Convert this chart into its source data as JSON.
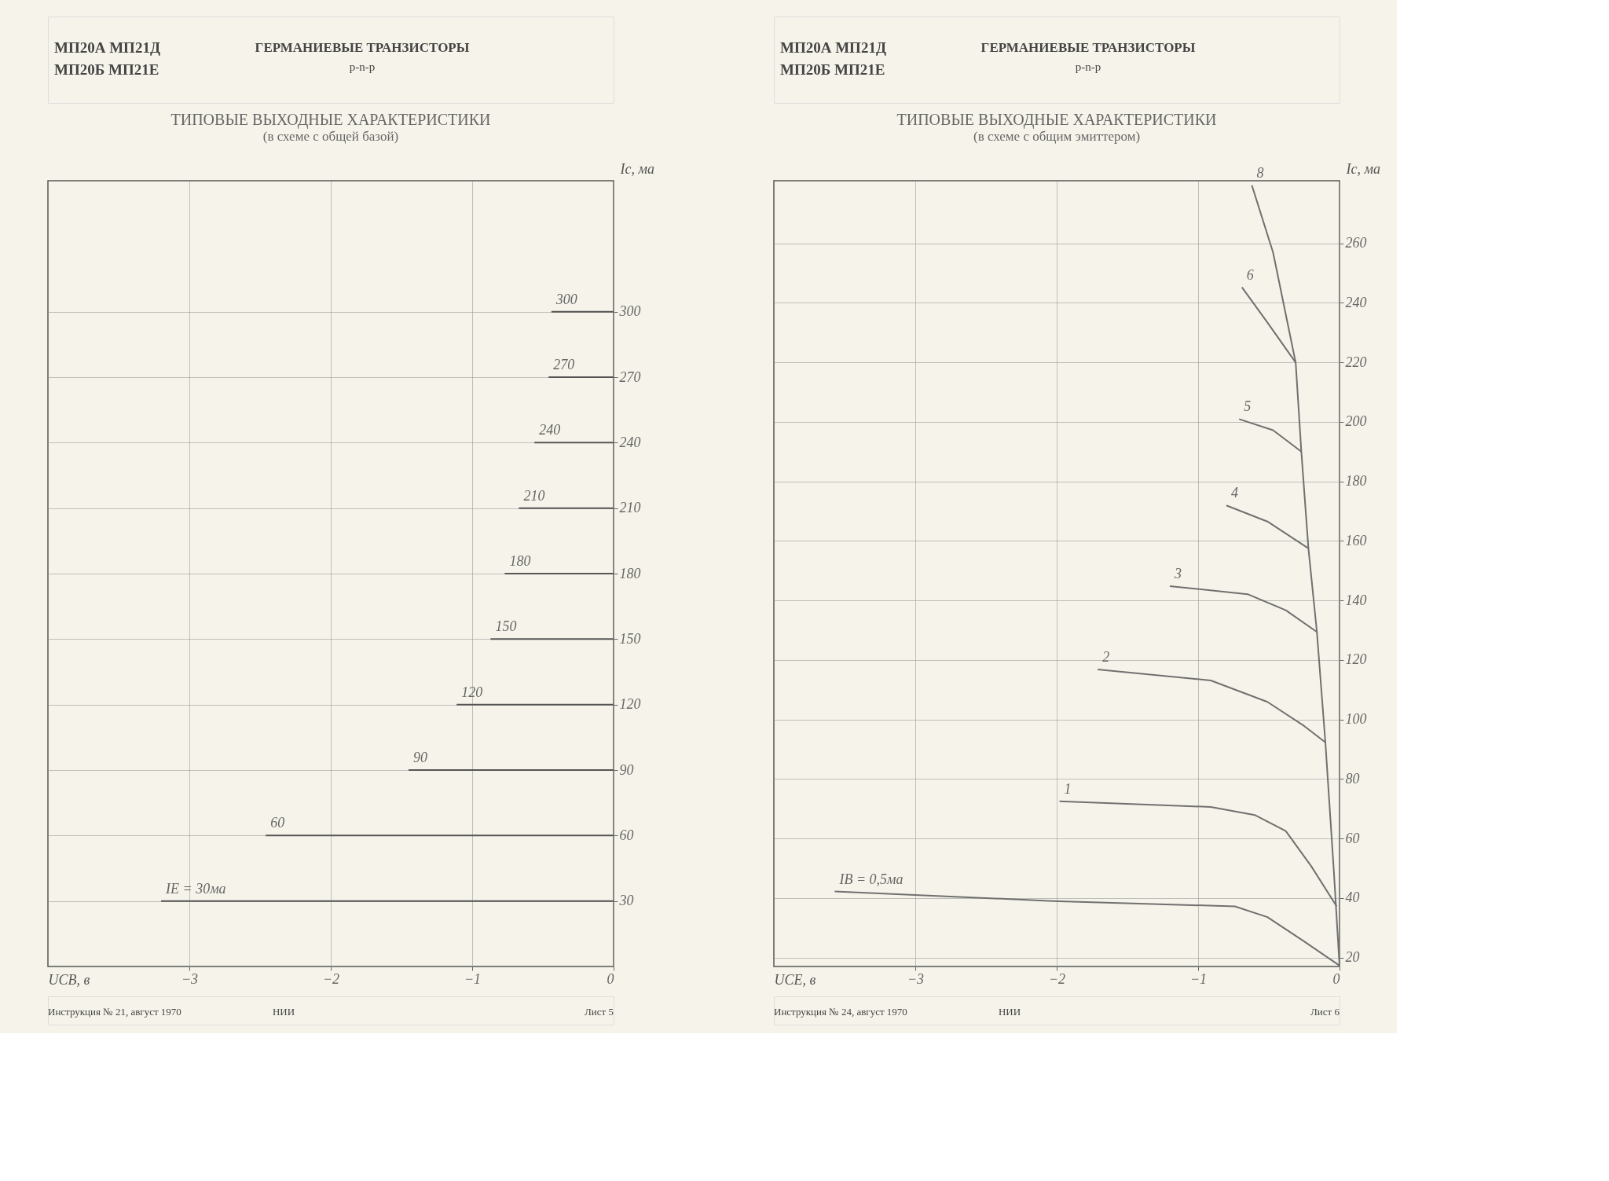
{
  "chart_data": [
    {
      "type": "line",
      "title": "ТИПОВЫЕ ВЫХОДНЫЕ ХАРАКТЕРИСТИКИ",
      "subtitle": "(в схеме с общей базой)",
      "xlabel": "UCB, в",
      "ylabel": "Ic, ма",
      "xlim": [
        -4,
        0
      ],
      "ylim": [
        0,
        360
      ],
      "xticks": [
        -3,
        -2,
        -1,
        0
      ],
      "yticks": [
        30,
        60,
        90,
        120,
        150,
        180,
        210,
        240,
        270,
        300
      ],
      "grid": true,
      "legend": false,
      "annotations": [
        "МП20А   МП21Д",
        "МП20Б   МП21Е",
        "ГЕРМАНИЕВЫЕ ТРАНЗИСТОРЫ",
        "р-n-р",
        "Инструкция № 21, август 1970",
        "НИИ",
        "Лист 5"
      ],
      "series": [
        {
          "name": "IE = 30ма",
          "color": "#555555",
          "x": [
            -3.2,
            0
          ],
          "values": [
            30,
            30
          ]
        },
        {
          "name": "60",
          "color": "#555555",
          "x": [
            -2.46,
            0
          ],
          "values": [
            60,
            60
          ]
        },
        {
          "name": "90",
          "color": "#555555",
          "x": [
            -1.45,
            0
          ],
          "values": [
            90,
            90
          ]
        },
        {
          "name": "120",
          "color": "#555555",
          "x": [
            -1.11,
            0
          ],
          "values": [
            120,
            120
          ]
        },
        {
          "name": "150",
          "color": "#555555",
          "x": [
            -0.87,
            0
          ],
          "values": [
            150,
            150
          ]
        },
        {
          "name": "180",
          "color": "#555555",
          "x": [
            -0.77,
            0
          ],
          "values": [
            180,
            180
          ]
        },
        {
          "name": "210",
          "color": "#555555",
          "x": [
            -0.67,
            0
          ],
          "values": [
            210,
            210
          ]
        },
        {
          "name": "240",
          "color": "#555555",
          "x": [
            -0.56,
            0
          ],
          "values": [
            240,
            240
          ]
        },
        {
          "name": "270",
          "color": "#555555",
          "x": [
            -0.46,
            0
          ],
          "values": [
            270,
            270
          ]
        },
        {
          "name": "300",
          "color": "#555555",
          "x": [
            -0.44,
            0
          ],
          "values": [
            300,
            300
          ]
        }
      ]
    },
    {
      "type": "line",
      "title": "ТИПОВЫЕ ВЫХОДНЫЕ ХАРАКТЕРИСТИКИ",
      "subtitle": "(в схеме с общим эмиттером)",
      "xlabel": "UCE, в",
      "ylabel": "Ic, ма",
      "xlim": [
        -4,
        0
      ],
      "ylim": [
        17,
        281
      ],
      "xticks": [
        -3,
        -2,
        -1,
        0
      ],
      "yticks": [
        20,
        40,
        60,
        80,
        100,
        120,
        140,
        160,
        180,
        200,
        220,
        240,
        260
      ],
      "grid": true,
      "legend": false,
      "annotations": [
        "МП20А   МП21Д",
        "МП20Б   МП21Е",
        "ГЕРМАНИЕВЫЕ ТРАНЗИСТОРЫ",
        "р-n-р",
        "Инструкция № 24, август 1970",
        "НИИ",
        "Лист 6"
      ],
      "series": [
        {
          "name": "IB = 0,5ма",
          "color": "#707070",
          "x": [
            -3.57,
            -2.03,
            -0.74,
            -0.51,
            -0.25,
            0
          ],
          "values": [
            42.2,
            39,
            37.2,
            33.6,
            25.4,
            17.3
          ]
        },
        {
          "name": "1",
          "color": "#707070",
          "x": [
            -1.98,
            -0.91,
            -0.6,
            -0.38,
            -0.2,
            -0.02
          ],
          "values": [
            72.5,
            70.6,
            67.9,
            62.5,
            50.7,
            37.2
          ]
        },
        {
          "name": "2",
          "color": "#707070",
          "x": [
            -1.71,
            -0.91,
            -0.51,
            -0.25,
            -0.1
          ],
          "values": [
            116.8,
            113.1,
            105.9,
            97.8,
            92.3
          ]
        },
        {
          "name": "3",
          "color": "#707070",
          "x": [
            -1.2,
            -0.65,
            -0.38,
            -0.16
          ],
          "values": [
            144.8,
            142.1,
            136.7,
            129.4
          ]
        },
        {
          "name": "4",
          "color": "#707070",
          "x": [
            -0.8,
            -0.51,
            -0.22
          ],
          "values": [
            171.9,
            166.5,
            157.5
          ]
        },
        {
          "name": "5",
          "color": "#707070",
          "x": [
            -0.71,
            -0.47,
            -0.27
          ],
          "values": [
            200.9,
            197.2,
            190
          ]
        },
        {
          "name": "6",
          "color": "#707070",
          "x": [
            -0.69,
            -0.51,
            -0.31
          ],
          "values": [
            245.2,
            233.4,
            219.9
          ]
        },
        {
          "name": "8",
          "color": "#707070",
          "x": [
            -0.62,
            -0.47,
            -0.31,
            -0.27,
            -0.22,
            -0.16,
            -0.1,
            -0.04,
            0
          ],
          "values": [
            279.5,
            256.9,
            219.9,
            190,
            157.5,
            129.4,
            92.3,
            48.9,
            17.3
          ]
        }
      ]
    }
  ]
}
